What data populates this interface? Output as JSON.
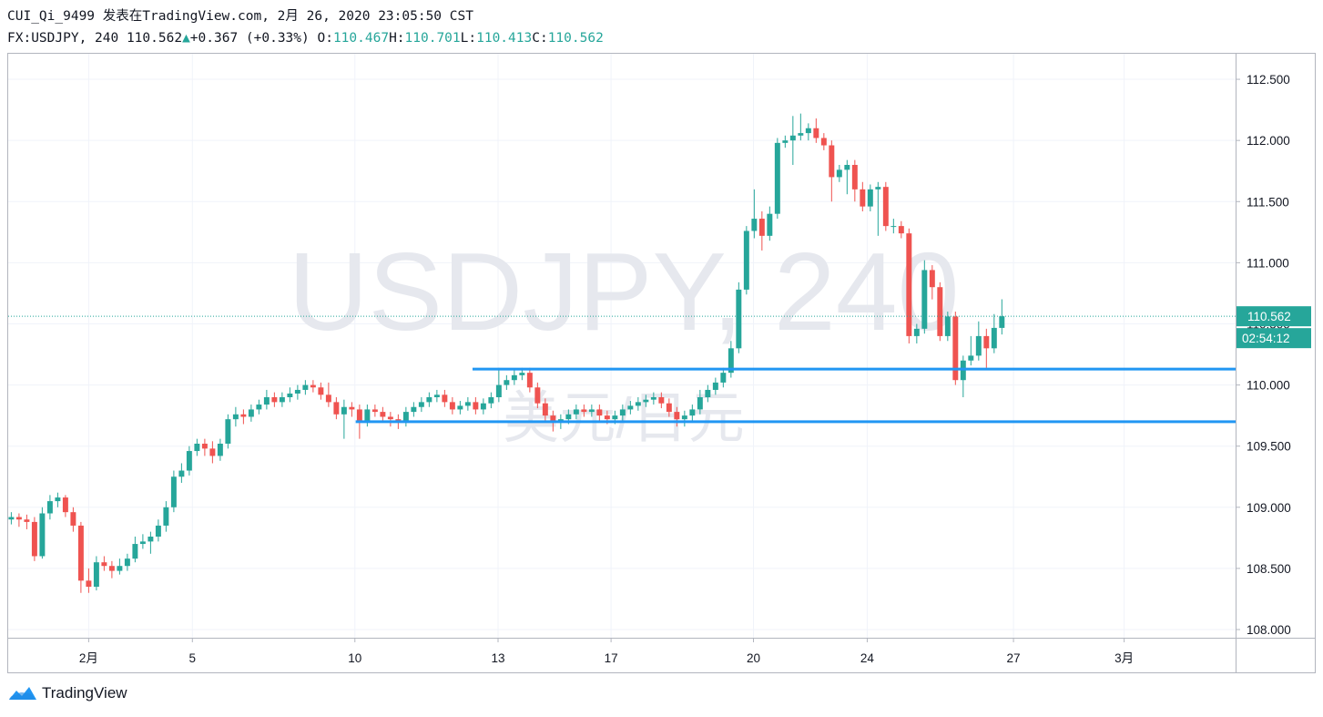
{
  "header": {
    "line1": "CUI_Qi_9499 发表在TradingView.com, 2月 26, 2020 23:05:50 CST",
    "symbol": "FX:USDJPY, 240",
    "price": "110.562",
    "arrow": "▲",
    "change": "+0.367 (+0.33%)",
    "ohlc": [
      {
        "label": "O:",
        "value": "110.467"
      },
      {
        "label": "H:",
        "value": "110.701"
      },
      {
        "label": "L:",
        "value": "110.413"
      },
      {
        "label": "C:",
        "value": "110.562"
      }
    ]
  },
  "logo": "TradingView",
  "chart_data": {
    "type": "candlestick",
    "watermark": "USDJPY, 240",
    "watermark_sub": "美元/日元",
    "up_color": "#26a69a",
    "down_color": "#ef5350",
    "line_color": "#2196f3",
    "countdown": "02:54:12",
    "grid": true,
    "ylim": [
      107.933,
      112.709
    ],
    "yticks": [
      {
        "value": 108,
        "label": "108.000"
      },
      {
        "value": 108.5,
        "label": "108.500"
      },
      {
        "value": 109,
        "label": "109.000"
      },
      {
        "value": 109.5,
        "label": "109.500"
      },
      {
        "value": 110,
        "label": "110.000"
      },
      {
        "value": 110.5,
        "label": "110.500"
      },
      {
        "value": 111,
        "label": "111.000"
      },
      {
        "value": 111.5,
        "label": "111.500"
      },
      {
        "value": 112,
        "label": "112.000"
      },
      {
        "value": 112.5,
        "label": "112.500"
      }
    ],
    "xlim": [
      -0.4,
      158.2
    ],
    "xticks": [
      {
        "value": 10,
        "label": "2月"
      },
      {
        "value": 23.4,
        "label": "5"
      },
      {
        "value": 44.4,
        "label": "10"
      },
      {
        "value": 62.9,
        "label": "13"
      },
      {
        "value": 77.5,
        "label": "17"
      },
      {
        "value": 95.9,
        "label": "20"
      },
      {
        "value": 110.6,
        "label": "24"
      },
      {
        "value": 129.5,
        "label": "27"
      },
      {
        "value": 143.8,
        "label": "3月"
      }
    ],
    "hlines": [
      {
        "value": 110.13,
        "from": 59.6
      },
      {
        "value": 109.7,
        "from": 44.5
      }
    ],
    "candles": [
      [
        108.9,
        108.96,
        108.86,
        108.92
      ],
      [
        108.92,
        108.95,
        108.84,
        108.9
      ],
      [
        108.9,
        108.94,
        108.82,
        108.88
      ],
      [
        108.88,
        108.92,
        108.56,
        108.6
      ],
      [
        108.6,
        109.0,
        108.58,
        108.95
      ],
      [
        108.95,
        109.1,
        108.9,
        109.05
      ],
      [
        109.05,
        109.12,
        109.0,
        109.08
      ],
      [
        109.08,
        109.1,
        108.92,
        108.96
      ],
      [
        108.96,
        109.0,
        108.8,
        108.85
      ],
      [
        108.85,
        108.88,
        108.3,
        108.4
      ],
      [
        108.4,
        108.5,
        108.3,
        108.35
      ],
      [
        108.35,
        108.6,
        108.32,
        108.55
      ],
      [
        108.55,
        108.6,
        108.48,
        108.52
      ],
      [
        108.52,
        108.56,
        108.42,
        108.48
      ],
      [
        108.48,
        108.58,
        108.45,
        108.52
      ],
      [
        108.52,
        108.62,
        108.48,
        108.58
      ],
      [
        108.58,
        108.76,
        108.55,
        108.7
      ],
      [
        108.7,
        108.78,
        108.66,
        108.72
      ],
      [
        108.72,
        108.8,
        108.62,
        108.76
      ],
      [
        108.76,
        108.9,
        108.72,
        108.85
      ],
      [
        108.85,
        109.05,
        108.8,
        109.0
      ],
      [
        109.0,
        109.3,
        108.96,
        109.25
      ],
      [
        109.25,
        109.36,
        109.2,
        109.3
      ],
      [
        109.3,
        109.5,
        109.26,
        109.46
      ],
      [
        109.46,
        109.56,
        109.42,
        109.52
      ],
      [
        109.52,
        109.56,
        109.42,
        109.48
      ],
      [
        109.48,
        109.54,
        109.36,
        109.42
      ],
      [
        109.42,
        109.56,
        109.38,
        109.52
      ],
      [
        109.52,
        109.76,
        109.48,
        109.72
      ],
      [
        109.72,
        109.82,
        109.66,
        109.76
      ],
      [
        109.76,
        109.8,
        109.68,
        109.74
      ],
      [
        109.74,
        109.84,
        109.7,
        109.8
      ],
      [
        109.8,
        109.88,
        109.76,
        109.84
      ],
      [
        109.84,
        109.96,
        109.8,
        109.9
      ],
      [
        109.9,
        109.94,
        109.82,
        109.86
      ],
      [
        109.86,
        109.94,
        109.82,
        109.9
      ],
      [
        109.9,
        109.98,
        109.86,
        109.93
      ],
      [
        109.93,
        110.0,
        109.88,
        109.96
      ],
      [
        109.96,
        110.04,
        109.92,
        110.0
      ],
      [
        110.0,
        110.04,
        109.94,
        109.98
      ],
      [
        109.98,
        110.02,
        109.88,
        109.92
      ],
      [
        109.92,
        110.02,
        109.82,
        109.86
      ],
      [
        109.86,
        109.9,
        109.72,
        109.76
      ],
      [
        109.76,
        109.88,
        109.56,
        109.82
      ],
      [
        109.82,
        109.86,
        109.74,
        109.8
      ],
      [
        109.8,
        109.84,
        109.56,
        109.7
      ],
      [
        109.7,
        109.84,
        109.66,
        109.8
      ],
      [
        109.8,
        109.84,
        109.74,
        109.78
      ],
      [
        109.78,
        109.82,
        109.7,
        109.74
      ],
      [
        109.74,
        109.78,
        109.66,
        109.72
      ],
      [
        109.72,
        109.76,
        109.64,
        109.7
      ],
      [
        109.7,
        109.82,
        109.66,
        109.78
      ],
      [
        109.78,
        109.86,
        109.74,
        109.82
      ],
      [
        109.82,
        109.9,
        109.78,
        109.86
      ],
      [
        109.86,
        109.94,
        109.82,
        109.9
      ],
      [
        109.9,
        109.96,
        109.86,
        109.92
      ],
      [
        109.92,
        109.96,
        109.82,
        109.86
      ],
      [
        109.86,
        109.9,
        109.76,
        109.8
      ],
      [
        109.8,
        109.87,
        109.76,
        109.83
      ],
      [
        109.83,
        109.9,
        109.79,
        109.86
      ],
      [
        109.86,
        109.9,
        109.76,
        109.8
      ],
      [
        109.8,
        109.89,
        109.76,
        109.85
      ],
      [
        109.85,
        109.94,
        109.81,
        109.9
      ],
      [
        109.9,
        110.14,
        109.86,
        110.0
      ],
      [
        110.0,
        110.08,
        109.96,
        110.04
      ],
      [
        110.04,
        110.12,
        110.0,
        110.08
      ],
      [
        110.08,
        110.14,
        110.04,
        110.1
      ],
      [
        110.1,
        110.14,
        109.94,
        109.98
      ],
      [
        109.98,
        110.02,
        109.81,
        109.85
      ],
      [
        109.85,
        109.89,
        109.71,
        109.75
      ],
      [
        109.75,
        109.79,
        109.62,
        109.7
      ],
      [
        109.7,
        109.76,
        109.64,
        109.72
      ],
      [
        109.72,
        109.8,
        109.68,
        109.76
      ],
      [
        109.76,
        109.84,
        109.72,
        109.8
      ],
      [
        109.8,
        109.84,
        109.74,
        109.78
      ],
      [
        109.78,
        109.84,
        109.74,
        109.8
      ],
      [
        109.8,
        109.84,
        109.71,
        109.75
      ],
      [
        109.75,
        109.79,
        109.68,
        109.72
      ],
      [
        109.72,
        109.79,
        109.68,
        109.75
      ],
      [
        109.75,
        109.84,
        109.71,
        109.8
      ],
      [
        109.8,
        109.87,
        109.76,
        109.83
      ],
      [
        109.83,
        109.9,
        109.79,
        109.86
      ],
      [
        109.86,
        109.92,
        109.82,
        109.88
      ],
      [
        109.88,
        109.94,
        109.84,
        109.9
      ],
      [
        109.9,
        109.94,
        109.81,
        109.85
      ],
      [
        109.85,
        109.89,
        109.74,
        109.78
      ],
      [
        109.78,
        109.82,
        109.66,
        109.72
      ],
      [
        109.72,
        109.79,
        109.66,
        109.75
      ],
      [
        109.75,
        109.84,
        109.71,
        109.8
      ],
      [
        109.8,
        109.96,
        109.76,
        109.9
      ],
      [
        109.9,
        110.0,
        109.86,
        109.96
      ],
      [
        109.96,
        110.06,
        109.92,
        110.02
      ],
      [
        110.02,
        110.14,
        109.98,
        110.1
      ],
      [
        110.1,
        110.36,
        110.06,
        110.3
      ],
      [
        110.3,
        110.84,
        110.26,
        110.78
      ],
      [
        110.78,
        111.3,
        110.74,
        111.26
      ],
      [
        111.26,
        111.6,
        111.2,
        111.36
      ],
      [
        111.36,
        111.42,
        111.1,
        111.22
      ],
      [
        111.22,
        111.46,
        111.18,
        111.4
      ],
      [
        111.4,
        112.02,
        111.36,
        111.98
      ],
      [
        111.98,
        112.04,
        111.94,
        112.0
      ],
      [
        112.0,
        112.2,
        111.8,
        112.04
      ],
      [
        112.04,
        112.22,
        112.0,
        112.06
      ],
      [
        112.06,
        112.14,
        112.0,
        112.1
      ],
      [
        112.1,
        112.18,
        111.98,
        112.02
      ],
      [
        112.02,
        112.06,
        111.92,
        111.96
      ],
      [
        111.96,
        112.0,
        111.5,
        111.7
      ],
      [
        111.7,
        111.8,
        111.66,
        111.76
      ],
      [
        111.76,
        111.84,
        111.56,
        111.8
      ],
      [
        111.8,
        111.84,
        111.5,
        111.6
      ],
      [
        111.6,
        111.66,
        111.42,
        111.46
      ],
      [
        111.46,
        111.64,
        111.42,
        111.6
      ],
      [
        111.6,
        111.66,
        111.22,
        111.62
      ],
      [
        111.62,
        111.66,
        111.26,
        111.3
      ],
      [
        111.3,
        111.36,
        111.24,
        111.3
      ],
      [
        111.3,
        111.34,
        111.2,
        111.24
      ],
      [
        111.24,
        111.28,
        110.34,
        110.4
      ],
      [
        110.4,
        110.5,
        110.34,
        110.46
      ],
      [
        110.46,
        111.02,
        110.42,
        110.94
      ],
      [
        110.94,
        110.98,
        110.7,
        110.8
      ],
      [
        110.8,
        110.84,
        110.36,
        110.4
      ],
      [
        110.4,
        110.6,
        110.36,
        110.56
      ],
      [
        110.56,
        110.6,
        110.0,
        110.04
      ],
      [
        110.04,
        110.24,
        109.9,
        110.2
      ],
      [
        110.2,
        110.4,
        110.16,
        110.24
      ],
      [
        110.24,
        110.52,
        110.2,
        110.4
      ],
      [
        110.4,
        110.46,
        110.14,
        110.3
      ],
      [
        110.3,
        110.58,
        110.26,
        110.467
      ],
      [
        110.467,
        110.701,
        110.413,
        110.562
      ]
    ]
  }
}
